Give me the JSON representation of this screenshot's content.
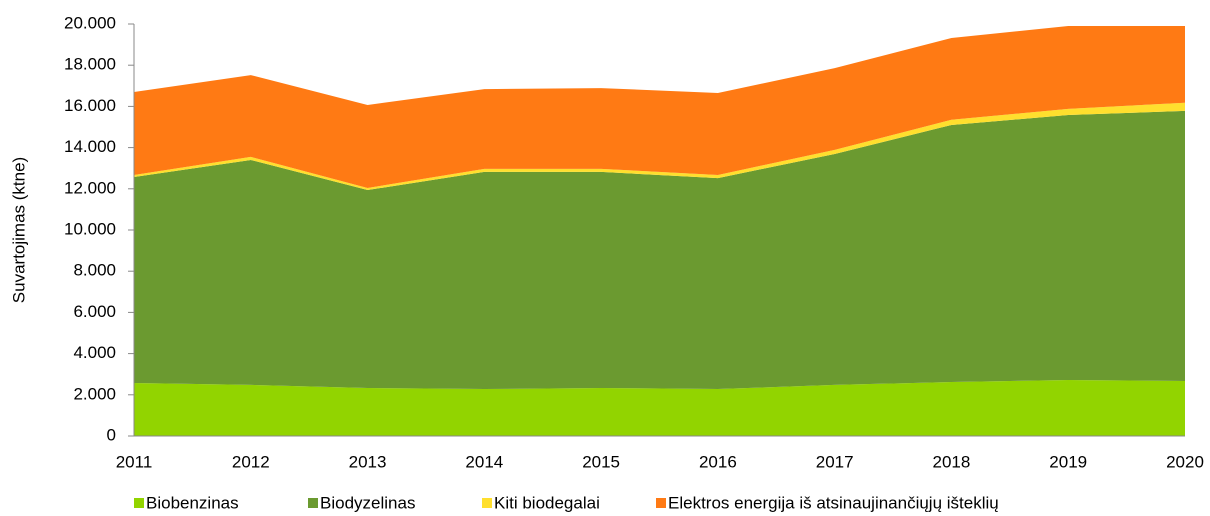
{
  "chart_data": {
    "type": "stacked_area",
    "y_label": "Suvartojimas (ktne)",
    "categories": [
      "2011",
      "2012",
      "2013",
      "2014",
      "2015",
      "2016",
      "2017",
      "2018",
      "2019",
      "2020"
    ],
    "series": [
      {
        "name": "Biobenzinas",
        "color": "#92d400",
        "values": [
          2570,
          2480,
          2330,
          2280,
          2330,
          2280,
          2480,
          2620,
          2720,
          2670
        ]
      },
      {
        "name": "Biodyzelinas",
        "color": "#6b9a30",
        "values": [
          10000,
          10920,
          9610,
          10540,
          10490,
          10240,
          11210,
          12480,
          12860,
          13110
        ]
      },
      {
        "name": "Kiti biodegalai",
        "color": "#ffdf2e",
        "values": [
          100,
          150,
          100,
          150,
          150,
          150,
          200,
          250,
          300,
          400
        ]
      },
      {
        "name": "Elektros energija iš atsinaujinančiųjų išteklių",
        "color": "#ff7a14",
        "values": [
          4030,
          3970,
          4030,
          3870,
          3920,
          3980,
          3970,
          3970,
          4020,
          3720
        ]
      }
    ],
    "ylim": [
      0,
      20000
    ],
    "yticks": [
      0,
      {
        "value": 2000,
        "label": "2.000"
      },
      {
        "value": 4000,
        "label": "4.000"
      },
      {
        "value": 6000,
        "label": "6.000"
      },
      {
        "value": 8000,
        "label": "8.000"
      },
      {
        "value": 10000,
        "label": "10.000"
      },
      {
        "value": 12000,
        "label": "12.000"
      },
      {
        "value": 14000,
        "label": "14.000"
      },
      {
        "value": 16000,
        "label": "16.000"
      },
      {
        "value": 18000,
        "label": "18.000"
      },
      {
        "value": 20000,
        "label": "20.000"
      }
    ],
    "legend": "bottom"
  }
}
